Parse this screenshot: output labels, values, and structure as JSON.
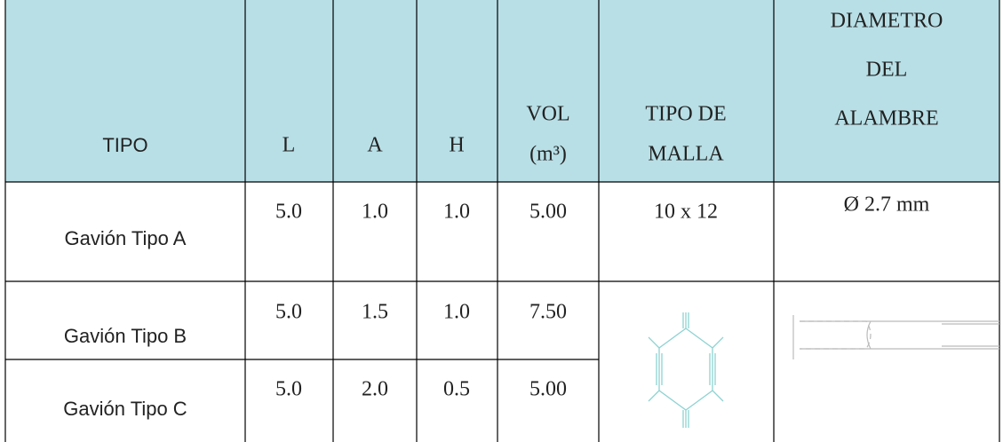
{
  "table": {
    "header": [
      "TIPO",
      "L",
      "A",
      "H",
      [
        "VOL",
        "(m³)"
      ],
      [
        "TIPO DE",
        "MALLA"
      ],
      [
        "DIAMETRO",
        "DEL",
        "ALAMBRE"
      ]
    ],
    "rows": [
      [
        "Gavión Tipo A",
        "5.0",
        "1.0",
        "1.0",
        "5.00",
        "10 x 12",
        "Ø 2.7 mm"
      ],
      [
        "Gavión Tipo B",
        "5.0",
        "1.5",
        "1.0",
        "7.50"
      ],
      [
        "Gavión Tipo C",
        "5.0",
        "2.0",
        "0.5",
        "5.00"
      ]
    ]
  }
}
